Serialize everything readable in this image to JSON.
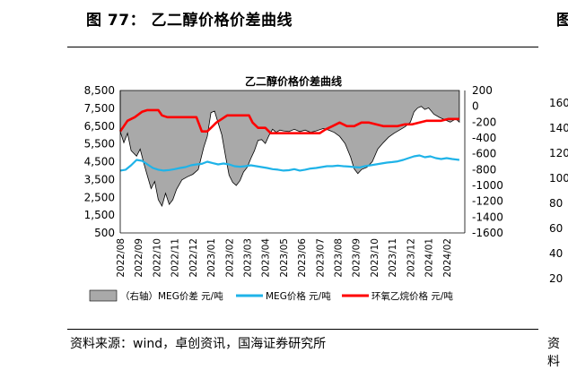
{
  "figure": {
    "title": "图 77： 乙二醇价格价差曲线",
    "source": "资料来源：wind，卓创资讯，国海证券研究所"
  },
  "right_panel": {
    "title_fragment": "图",
    "source_fragment": "资料",
    "y_ticks": [
      "160",
      "140",
      "120",
      "100",
      "80",
      "60",
      "40",
      "20"
    ]
  },
  "colors": {
    "spread_fill": "#a9a9a9",
    "spread_stroke": "#000000",
    "meg": "#1fb3e8",
    "eo": "#ff0000"
  },
  "chart_data": {
    "type": "area",
    "title": "乙二醇价格价差曲线",
    "x_tick_labels": [
      "2022/08",
      "2022/09",
      "2022/10",
      "2022/11",
      "2022/12",
      "2023/01",
      "2023/02",
      "2023/03",
      "2023/04",
      "2023/05",
      "2023/06",
      "2023/07",
      "2023/08",
      "2023/09",
      "2023/10",
      "2023/11",
      "2023/12",
      "2024/01",
      "2024/02"
    ],
    "x_range": [
      "2022/08",
      "2024/03"
    ],
    "ylim_left": [
      500,
      8500
    ],
    "yticks_left": [
      8500,
      7500,
      6500,
      5500,
      4500,
      3500,
      2500,
      1500,
      500
    ],
    "ylim_right": [
      -1600,
      200
    ],
    "yticks_right": [
      200,
      0,
      -200,
      -400,
      -600,
      -800,
      -1000,
      -1200,
      -1400,
      -1600
    ],
    "legend_position": "bottom",
    "series": [
      {
        "name": "（右轴）MEG价差 元/吨",
        "axis": "right",
        "type": "area",
        "points": [
          [
            0.0,
            -320
          ],
          [
            0.2,
            -460
          ],
          [
            0.4,
            -340
          ],
          [
            0.6,
            -560
          ],
          [
            0.9,
            -630
          ],
          [
            1.1,
            -540
          ],
          [
            1.3,
            -720
          ],
          [
            1.5,
            -880
          ],
          [
            1.7,
            -1040
          ],
          [
            1.9,
            -950
          ],
          [
            2.1,
            -1180
          ],
          [
            2.3,
            -1260
          ],
          [
            2.5,
            -1100
          ],
          [
            2.7,
            -1240
          ],
          [
            2.9,
            -1180
          ],
          [
            3.1,
            -1050
          ],
          [
            3.4,
            -930
          ],
          [
            3.7,
            -890
          ],
          [
            4.0,
            -860
          ],
          [
            4.3,
            -800
          ],
          [
            4.6,
            -520
          ],
          [
            4.8,
            -380
          ],
          [
            5.0,
            -80
          ],
          [
            5.2,
            -60
          ],
          [
            5.4,
            -210
          ],
          [
            5.6,
            -360
          ],
          [
            5.8,
            -620
          ],
          [
            6.0,
            -870
          ],
          [
            6.2,
            -960
          ],
          [
            6.4,
            -1000
          ],
          [
            6.6,
            -940
          ],
          [
            6.8,
            -830
          ],
          [
            7.0,
            -770
          ],
          [
            7.2,
            -660
          ],
          [
            7.4,
            -560
          ],
          [
            7.6,
            -430
          ],
          [
            7.8,
            -420
          ],
          [
            8.0,
            -470
          ],
          [
            8.2,
            -370
          ],
          [
            8.4,
            -290
          ],
          [
            8.6,
            -330
          ],
          [
            8.8,
            -300
          ],
          [
            9.0,
            -310
          ],
          [
            9.3,
            -320
          ],
          [
            9.6,
            -290
          ],
          [
            9.9,
            -320
          ],
          [
            10.2,
            -300
          ],
          [
            10.5,
            -330
          ],
          [
            10.8,
            -310
          ],
          [
            11.2,
            -280
          ],
          [
            11.5,
            -300
          ],
          [
            11.8,
            -330
          ],
          [
            12.1,
            -380
          ],
          [
            12.4,
            -470
          ],
          [
            12.7,
            -640
          ],
          [
            12.9,
            -790
          ],
          [
            13.1,
            -850
          ],
          [
            13.3,
            -800
          ],
          [
            13.6,
            -770
          ],
          [
            13.9,
            -700
          ],
          [
            14.2,
            -540
          ],
          [
            14.5,
            -460
          ],
          [
            14.8,
            -390
          ],
          [
            15.1,
            -340
          ],
          [
            15.4,
            -300
          ],
          [
            15.7,
            -260
          ],
          [
            16.0,
            -200
          ],
          [
            16.2,
            -70
          ],
          [
            16.4,
            -20
          ],
          [
            16.6,
            0
          ],
          [
            16.8,
            -40
          ],
          [
            17.0,
            -20
          ],
          [
            17.3,
            -100
          ],
          [
            17.6,
            -140
          ],
          [
            17.9,
            -170
          ],
          [
            18.2,
            -200
          ],
          [
            18.5,
            -160
          ],
          [
            18.7,
            -200
          ]
        ]
      },
      {
        "name": "MEG价格 元/吨",
        "axis": "left",
        "type": "line",
        "points": [
          [
            0.0,
            4000
          ],
          [
            0.3,
            4050
          ],
          [
            0.6,
            4300
          ],
          [
            0.9,
            4600
          ],
          [
            1.2,
            4550
          ],
          [
            1.5,
            4350
          ],
          [
            1.8,
            4150
          ],
          [
            2.1,
            4050
          ],
          [
            2.4,
            4000
          ],
          [
            2.7,
            4030
          ],
          [
            3.0,
            4080
          ],
          [
            3.3,
            4150
          ],
          [
            3.6,
            4200
          ],
          [
            3.9,
            4300
          ],
          [
            4.2,
            4350
          ],
          [
            4.5,
            4380
          ],
          [
            4.8,
            4500
          ],
          [
            5.1,
            4420
          ],
          [
            5.4,
            4350
          ],
          [
            5.7,
            4400
          ],
          [
            6.0,
            4350
          ],
          [
            6.3,
            4250
          ],
          [
            6.6,
            4220
          ],
          [
            6.9,
            4250
          ],
          [
            7.2,
            4300
          ],
          [
            7.5,
            4250
          ],
          [
            7.8,
            4200
          ],
          [
            8.1,
            4150
          ],
          [
            8.4,
            4080
          ],
          [
            8.7,
            4050
          ],
          [
            9.0,
            4000
          ],
          [
            9.3,
            4020
          ],
          [
            9.6,
            4080
          ],
          [
            9.9,
            4000
          ],
          [
            10.2,
            4050
          ],
          [
            10.5,
            4120
          ],
          [
            10.8,
            4150
          ],
          [
            11.1,
            4200
          ],
          [
            11.4,
            4250
          ],
          [
            11.7,
            4250
          ],
          [
            12.0,
            4280
          ],
          [
            12.3,
            4250
          ],
          [
            12.6,
            4230
          ],
          [
            12.9,
            4200
          ],
          [
            13.2,
            4180
          ],
          [
            13.5,
            4250
          ],
          [
            13.8,
            4300
          ],
          [
            14.1,
            4350
          ],
          [
            14.4,
            4400
          ],
          [
            14.7,
            4450
          ],
          [
            15.0,
            4480
          ],
          [
            15.3,
            4520
          ],
          [
            15.6,
            4600
          ],
          [
            15.9,
            4700
          ],
          [
            16.2,
            4800
          ],
          [
            16.5,
            4850
          ],
          [
            16.8,
            4750
          ],
          [
            17.1,
            4800
          ],
          [
            17.4,
            4700
          ],
          [
            17.7,
            4650
          ],
          [
            18.0,
            4700
          ],
          [
            18.3,
            4650
          ],
          [
            18.7,
            4600
          ]
        ]
      },
      {
        "name": "环氧乙烷价格 元/吨",
        "axis": "left",
        "type": "line",
        "points": [
          [
            0.0,
            6200
          ],
          [
            0.4,
            6800
          ],
          [
            0.8,
            7000
          ],
          [
            1.2,
            7300
          ],
          [
            1.5,
            7400
          ],
          [
            1.8,
            7400
          ],
          [
            2.1,
            7400
          ],
          [
            2.3,
            7100
          ],
          [
            2.6,
            7000
          ],
          [
            3.0,
            7000
          ],
          [
            3.4,
            7000
          ],
          [
            3.8,
            7000
          ],
          [
            4.2,
            7000
          ],
          [
            4.5,
            6200
          ],
          [
            4.8,
            6200
          ],
          [
            5.1,
            6500
          ],
          [
            5.3,
            6700
          ],
          [
            5.6,
            6900
          ],
          [
            5.9,
            7100
          ],
          [
            6.2,
            7100
          ],
          [
            6.5,
            7100
          ],
          [
            6.8,
            7100
          ],
          [
            7.1,
            7100
          ],
          [
            7.3,
            6700
          ],
          [
            7.6,
            6400
          ],
          [
            8.0,
            6400
          ],
          [
            8.3,
            6100
          ],
          [
            8.6,
            6100
          ],
          [
            9.0,
            6100
          ],
          [
            9.4,
            6100
          ],
          [
            9.8,
            6100
          ],
          [
            10.2,
            6100
          ],
          [
            10.6,
            6100
          ],
          [
            11.0,
            6100
          ],
          [
            11.3,
            6300
          ],
          [
            11.7,
            6500
          ],
          [
            12.1,
            6700
          ],
          [
            12.5,
            6500
          ],
          [
            12.9,
            6500
          ],
          [
            13.3,
            6700
          ],
          [
            13.7,
            6700
          ],
          [
            14.1,
            6600
          ],
          [
            14.5,
            6500
          ],
          [
            14.9,
            6500
          ],
          [
            15.3,
            6500
          ],
          [
            15.7,
            6600
          ],
          [
            16.1,
            6600
          ],
          [
            16.5,
            6700
          ],
          [
            16.9,
            6800
          ],
          [
            17.3,
            6800
          ],
          [
            17.7,
            6800
          ],
          [
            18.1,
            6900
          ],
          [
            18.5,
            6900
          ],
          [
            18.7,
            6900
          ]
        ]
      }
    ]
  }
}
